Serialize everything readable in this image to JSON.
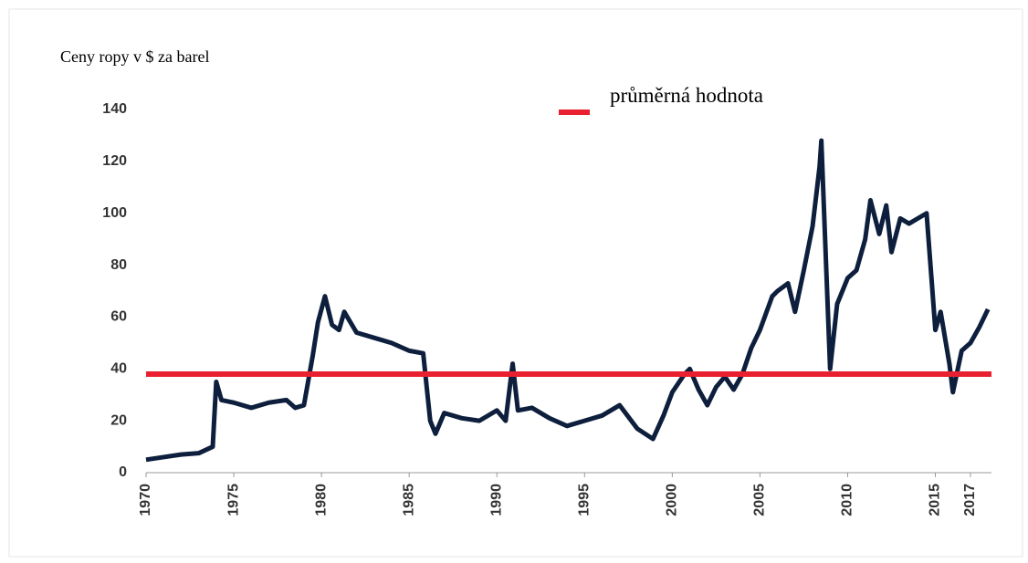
{
  "chart_data": {
    "type": "line",
    "title": "Ceny ropy v $ za barel",
    "x": [
      1970,
      1971,
      1972,
      1973,
      1973.8,
      1974,
      1974.3,
      1975,
      1976,
      1977,
      1978,
      1978.5,
      1979,
      1979.5,
      1979.8,
      1980.2,
      1980.6,
      1981,
      1981.3,
      1982,
      1983,
      1984,
      1985,
      1985.8,
      1986.2,
      1986.5,
      1987,
      1988,
      1989,
      1990,
      1990.5,
      1990.9,
      1991.2,
      1992,
      1993,
      1994,
      1995,
      1996,
      1997,
      1998,
      1998.9,
      1999.5,
      2000,
      2000.7,
      2001,
      2001.5,
      2002,
      2002.5,
      2003,
      2003.5,
      2004,
      2004.5,
      2005,
      2005.7,
      2006,
      2006.6,
      2007,
      2007.5,
      2008,
      2008.4,
      2008.5,
      2008.8,
      2009,
      2009.4,
      2010,
      2010.5,
      2011,
      2011.3,
      2011.8,
      2012.2,
      2012.5,
      2013,
      2013.5,
      2014,
      2014.5,
      2015,
      2015.3,
      2015.8,
      2016,
      2016.5,
      2017,
      2017.5,
      2018
    ],
    "series": [
      {
        "color": "#0d1f3c",
        "values": [
          5,
          6,
          7,
          7.5,
          10,
          35,
          28,
          27,
          25,
          27,
          28,
          25,
          26,
          45,
          58,
          68,
          57,
          55,
          62,
          54,
          52,
          50,
          47,
          46,
          20,
          15,
          23,
          21,
          20,
          24,
          20,
          42,
          24,
          25,
          21,
          18,
          20,
          22,
          26,
          17,
          13,
          22,
          31,
          38,
          40,
          32,
          26,
          33,
          37,
          32,
          38,
          48,
          55,
          68,
          70,
          73,
          62,
          78,
          95,
          118,
          128,
          75,
          40,
          65,
          75,
          78,
          90,
          105,
          92,
          103,
          85,
          98,
          96,
          98,
          100,
          55,
          62,
          42,
          31,
          47,
          50,
          56,
          63
        ]
      }
    ],
    "reference_line": {
      "name": "průměrná hodnota",
      "value": 38,
      "color": "#e8202f"
    },
    "xlim": [
      1970,
      2018.2
    ],
    "xticks": [
      1970,
      1975,
      1980,
      1985,
      1990,
      1995,
      2000,
      2005,
      2010,
      2015,
      2017
    ],
    "ylim": [
      0,
      140
    ],
    "yticks": [
      0,
      20,
      40,
      60,
      80,
      100,
      120,
      140
    ],
    "grid": false
  }
}
